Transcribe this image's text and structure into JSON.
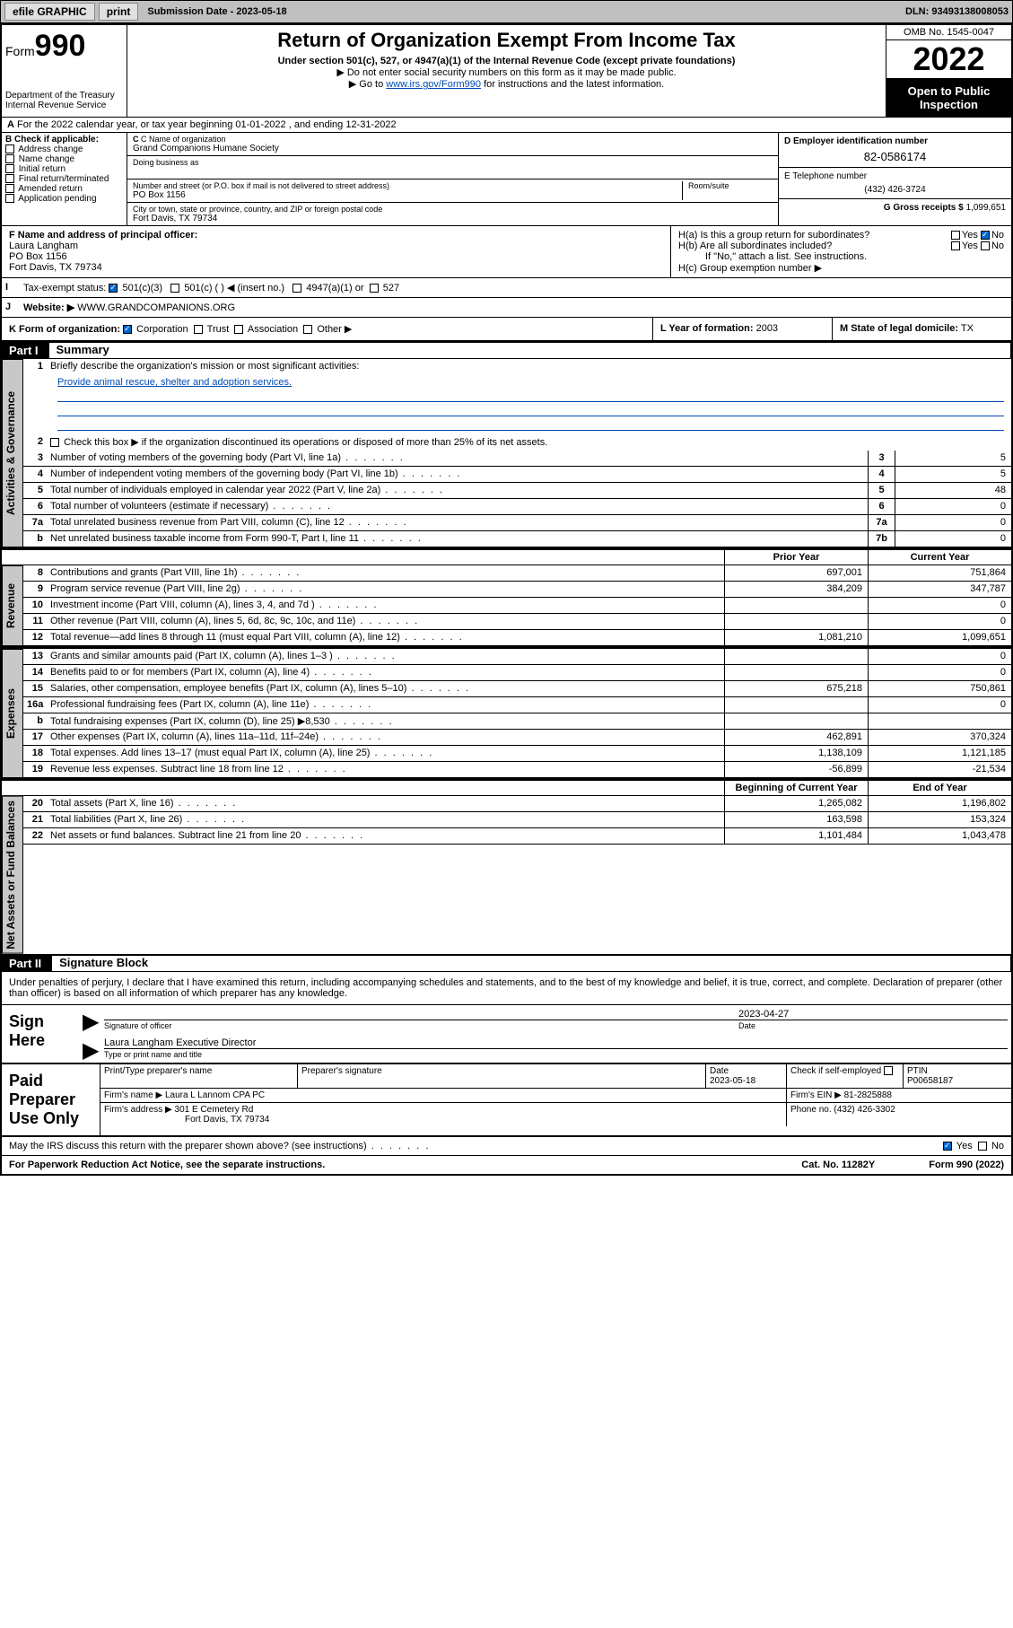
{
  "topbar": {
    "efile": "efile GRAPHIC",
    "print": "print",
    "sub_label": "Submission Date - 2023-05-18",
    "dln": "DLN: 93493138008053"
  },
  "header": {
    "form_prefix": "Form",
    "form_num": "990",
    "dept": "Department of the Treasury\nInternal Revenue Service",
    "title": "Return of Organization Exempt From Income Tax",
    "sub1": "Under section 501(c), 527, or 4947(a)(1) of the Internal Revenue Code (except private foundations)",
    "sub2": "Do not enter social security numbers on this form as it may be made public.",
    "sub3_pre": "Go to ",
    "sub3_link": "www.irs.gov/Form990",
    "sub3_post": " for instructions and the latest information.",
    "omb": "OMB No. 1545-0047",
    "year": "2022",
    "open": "Open to Public Inspection"
  },
  "rowA": "For the 2022 calendar year, or tax year beginning 01-01-2022   , and ending 12-31-2022",
  "colB": {
    "hdr": "B Check if applicable:",
    "opts": [
      "Address change",
      "Name change",
      "Initial return",
      "Final return/terminated",
      "Amended return",
      "Application pending"
    ]
  },
  "colC": {
    "name_lbl": "C Name of organization",
    "name": "Grand Companions Humane Society",
    "dba_lbl": "Doing business as",
    "addr_lbl": "Number and street (or P.O. box if mail is not delivered to street address)",
    "room_lbl": "Room/suite",
    "addr": "PO Box 1156",
    "city_lbl": "City or town, state or province, country, and ZIP or foreign postal code",
    "city": "Fort Davis, TX  79734"
  },
  "colDE": {
    "d_lbl": "D Employer identification number",
    "ein": "82-0586174",
    "e_lbl": "E Telephone number",
    "phone": "(432) 426-3724",
    "g_lbl": "G Gross receipts $",
    "g_val": "1,099,651"
  },
  "rowF": {
    "f_lbl": "F Name and address of principal officer:",
    "f_name": "Laura Langham",
    "f_addr1": "PO Box 1156",
    "f_addr2": "Fort Davis, TX  79734",
    "ha": "H(a)  Is this a group return for subordinates?",
    "hb": "H(b)  Are all subordinates included?",
    "hb_note": "If \"No,\" attach a list. See instructions.",
    "hc": "H(c)  Group exemption number ▶",
    "yes": "Yes",
    "no": "No"
  },
  "rowI": {
    "lbl": "Tax-exempt status:",
    "c3": "501(c)(3)",
    "c": "501(c) (  ) ◀ (insert no.)",
    "a1": "4947(a)(1) or",
    "s527": "527"
  },
  "rowJ": {
    "lbl": "Website: ▶",
    "val": "WWW.GRANDCOMPANIONS.ORG"
  },
  "rowK": {
    "k_lbl": "K Form of organization:",
    "corp": "Corporation",
    "trust": "Trust",
    "assoc": "Association",
    "other": "Other ▶",
    "l_lbl": "L Year of formation:",
    "l_val": "2003",
    "m_lbl": "M State of legal domicile:",
    "m_val": "TX"
  },
  "part1": {
    "num": "Part I",
    "title": "Summary"
  },
  "summary": {
    "q1": "Briefly describe the organization's mission or most significant activities:",
    "q1a": "Provide animal rescue, shelter and adoption services.",
    "q2": "Check this box ▶        if the organization discontinued its operations or disposed of more than 25% of its net assets.",
    "lines_ag": [
      {
        "n": "3",
        "t": "Number of voting members of the governing body (Part VI, line 1a)",
        "b": "3",
        "v": "5"
      },
      {
        "n": "4",
        "t": "Number of independent voting members of the governing body (Part VI, line 1b)",
        "b": "4",
        "v": "5"
      },
      {
        "n": "5",
        "t": "Total number of individuals employed in calendar year 2022 (Part V, line 2a)",
        "b": "5",
        "v": "48"
      },
      {
        "n": "6",
        "t": "Total number of volunteers (estimate if necessary)",
        "b": "6",
        "v": "0"
      },
      {
        "n": "7a",
        "t": "Total unrelated business revenue from Part VIII, column (C), line 12",
        "b": "7a",
        "v": "0"
      },
      {
        "n": "b",
        "t": "Net unrelated business taxable income from Form 990-T, Part I, line 11",
        "b": "7b",
        "v": "0"
      }
    ],
    "hdr_prior": "Prior Year",
    "hdr_curr": "Current Year",
    "rev": [
      {
        "n": "8",
        "t": "Contributions and grants (Part VIII, line 1h)",
        "p": "697,001",
        "c": "751,864"
      },
      {
        "n": "9",
        "t": "Program service revenue (Part VIII, line 2g)",
        "p": "384,209",
        "c": "347,787"
      },
      {
        "n": "10",
        "t": "Investment income (Part VIII, column (A), lines 3, 4, and 7d )",
        "p": "",
        "c": "0"
      },
      {
        "n": "11",
        "t": "Other revenue (Part VIII, column (A), lines 5, 6d, 8c, 9c, 10c, and 11e)",
        "p": "",
        "c": "0"
      },
      {
        "n": "12",
        "t": "Total revenue—add lines 8 through 11 (must equal Part VIII, column (A), line 12)",
        "p": "1,081,210",
        "c": "1,099,651"
      }
    ],
    "exp": [
      {
        "n": "13",
        "t": "Grants and similar amounts paid (Part IX, column (A), lines 1–3 )",
        "p": "",
        "c": "0"
      },
      {
        "n": "14",
        "t": "Benefits paid to or for members (Part IX, column (A), line 4)",
        "p": "",
        "c": "0"
      },
      {
        "n": "15",
        "t": "Salaries, other compensation, employee benefits (Part IX, column (A), lines 5–10)",
        "p": "675,218",
        "c": "750,861"
      },
      {
        "n": "16a",
        "t": "Professional fundraising fees (Part IX, column (A), line 11e)",
        "p": "",
        "c": "0"
      },
      {
        "n": "b",
        "t": "Total fundraising expenses (Part IX, column (D), line 25) ▶8,530",
        "p": "shade",
        "c": "shade"
      },
      {
        "n": "17",
        "t": "Other expenses (Part IX, column (A), lines 11a–11d, 11f–24e)",
        "p": "462,891",
        "c": "370,324"
      },
      {
        "n": "18",
        "t": "Total expenses. Add lines 13–17 (must equal Part IX, column (A), line 25)",
        "p": "1,138,109",
        "c": "1,121,185"
      },
      {
        "n": "19",
        "t": "Revenue less expenses. Subtract line 18 from line 12",
        "p": "-56,899",
        "c": "-21,534"
      }
    ],
    "hdr_boy": "Beginning of Current Year",
    "hdr_eoy": "End of Year",
    "na": [
      {
        "n": "20",
        "t": "Total assets (Part X, line 16)",
        "p": "1,265,082",
        "c": "1,196,802"
      },
      {
        "n": "21",
        "t": "Total liabilities (Part X, line 26)",
        "p": "163,598",
        "c": "153,324"
      },
      {
        "n": "22",
        "t": "Net assets or fund balances. Subtract line 21 from line 20",
        "p": "1,101,484",
        "c": "1,043,478"
      }
    ],
    "vtab_ag": "Activities & Governance",
    "vtab_rev": "Revenue",
    "vtab_exp": "Expenses",
    "vtab_na": "Net Assets or Fund Balances"
  },
  "part2": {
    "num": "Part II",
    "title": "Signature Block"
  },
  "sig": {
    "decl": "Under penalties of perjury, I declare that I have examined this return, including accompanying schedules and statements, and to the best of my knowledge and belief, it is true, correct, and complete. Declaration of preparer (other than officer) is based on all information of which preparer has any knowledge.",
    "sign_here": "Sign Here",
    "sig_officer": "Signature of officer",
    "date_lbl": "Date",
    "date": "2023-04-27",
    "name_title": "Laura Langham  Executive Director",
    "name_lbl": "Type or print name and title",
    "paid": "Paid Preparer Use Only",
    "pt_name_lbl": "Print/Type preparer's name",
    "pt_sig_lbl": "Preparer's signature",
    "pt_date_lbl": "Date",
    "pt_date": "2023-05-18",
    "pt_check": "Check        if self-employed",
    "ptin_lbl": "PTIN",
    "ptin": "P00658187",
    "firm_name_lbl": "Firm's name    ▶",
    "firm_name": "Laura L Lannom CPA PC",
    "firm_ein_lbl": "Firm's EIN ▶",
    "firm_ein": "81-2825888",
    "firm_addr_lbl": "Firm's address ▶",
    "firm_addr1": "301 E Cemetery Rd",
    "firm_addr2": "Fort Davis, TX  79734",
    "firm_phone_lbl": "Phone no.",
    "firm_phone": "(432) 426-3302"
  },
  "footer": {
    "may": "May the IRS discuss this return with the preparer shown above? (see instructions)",
    "yes": "Yes",
    "no": "No",
    "pra": "For Paperwork Reduction Act Notice, see the separate instructions.",
    "cat": "Cat. No. 11282Y",
    "form": "Form 990 (2022)"
  }
}
